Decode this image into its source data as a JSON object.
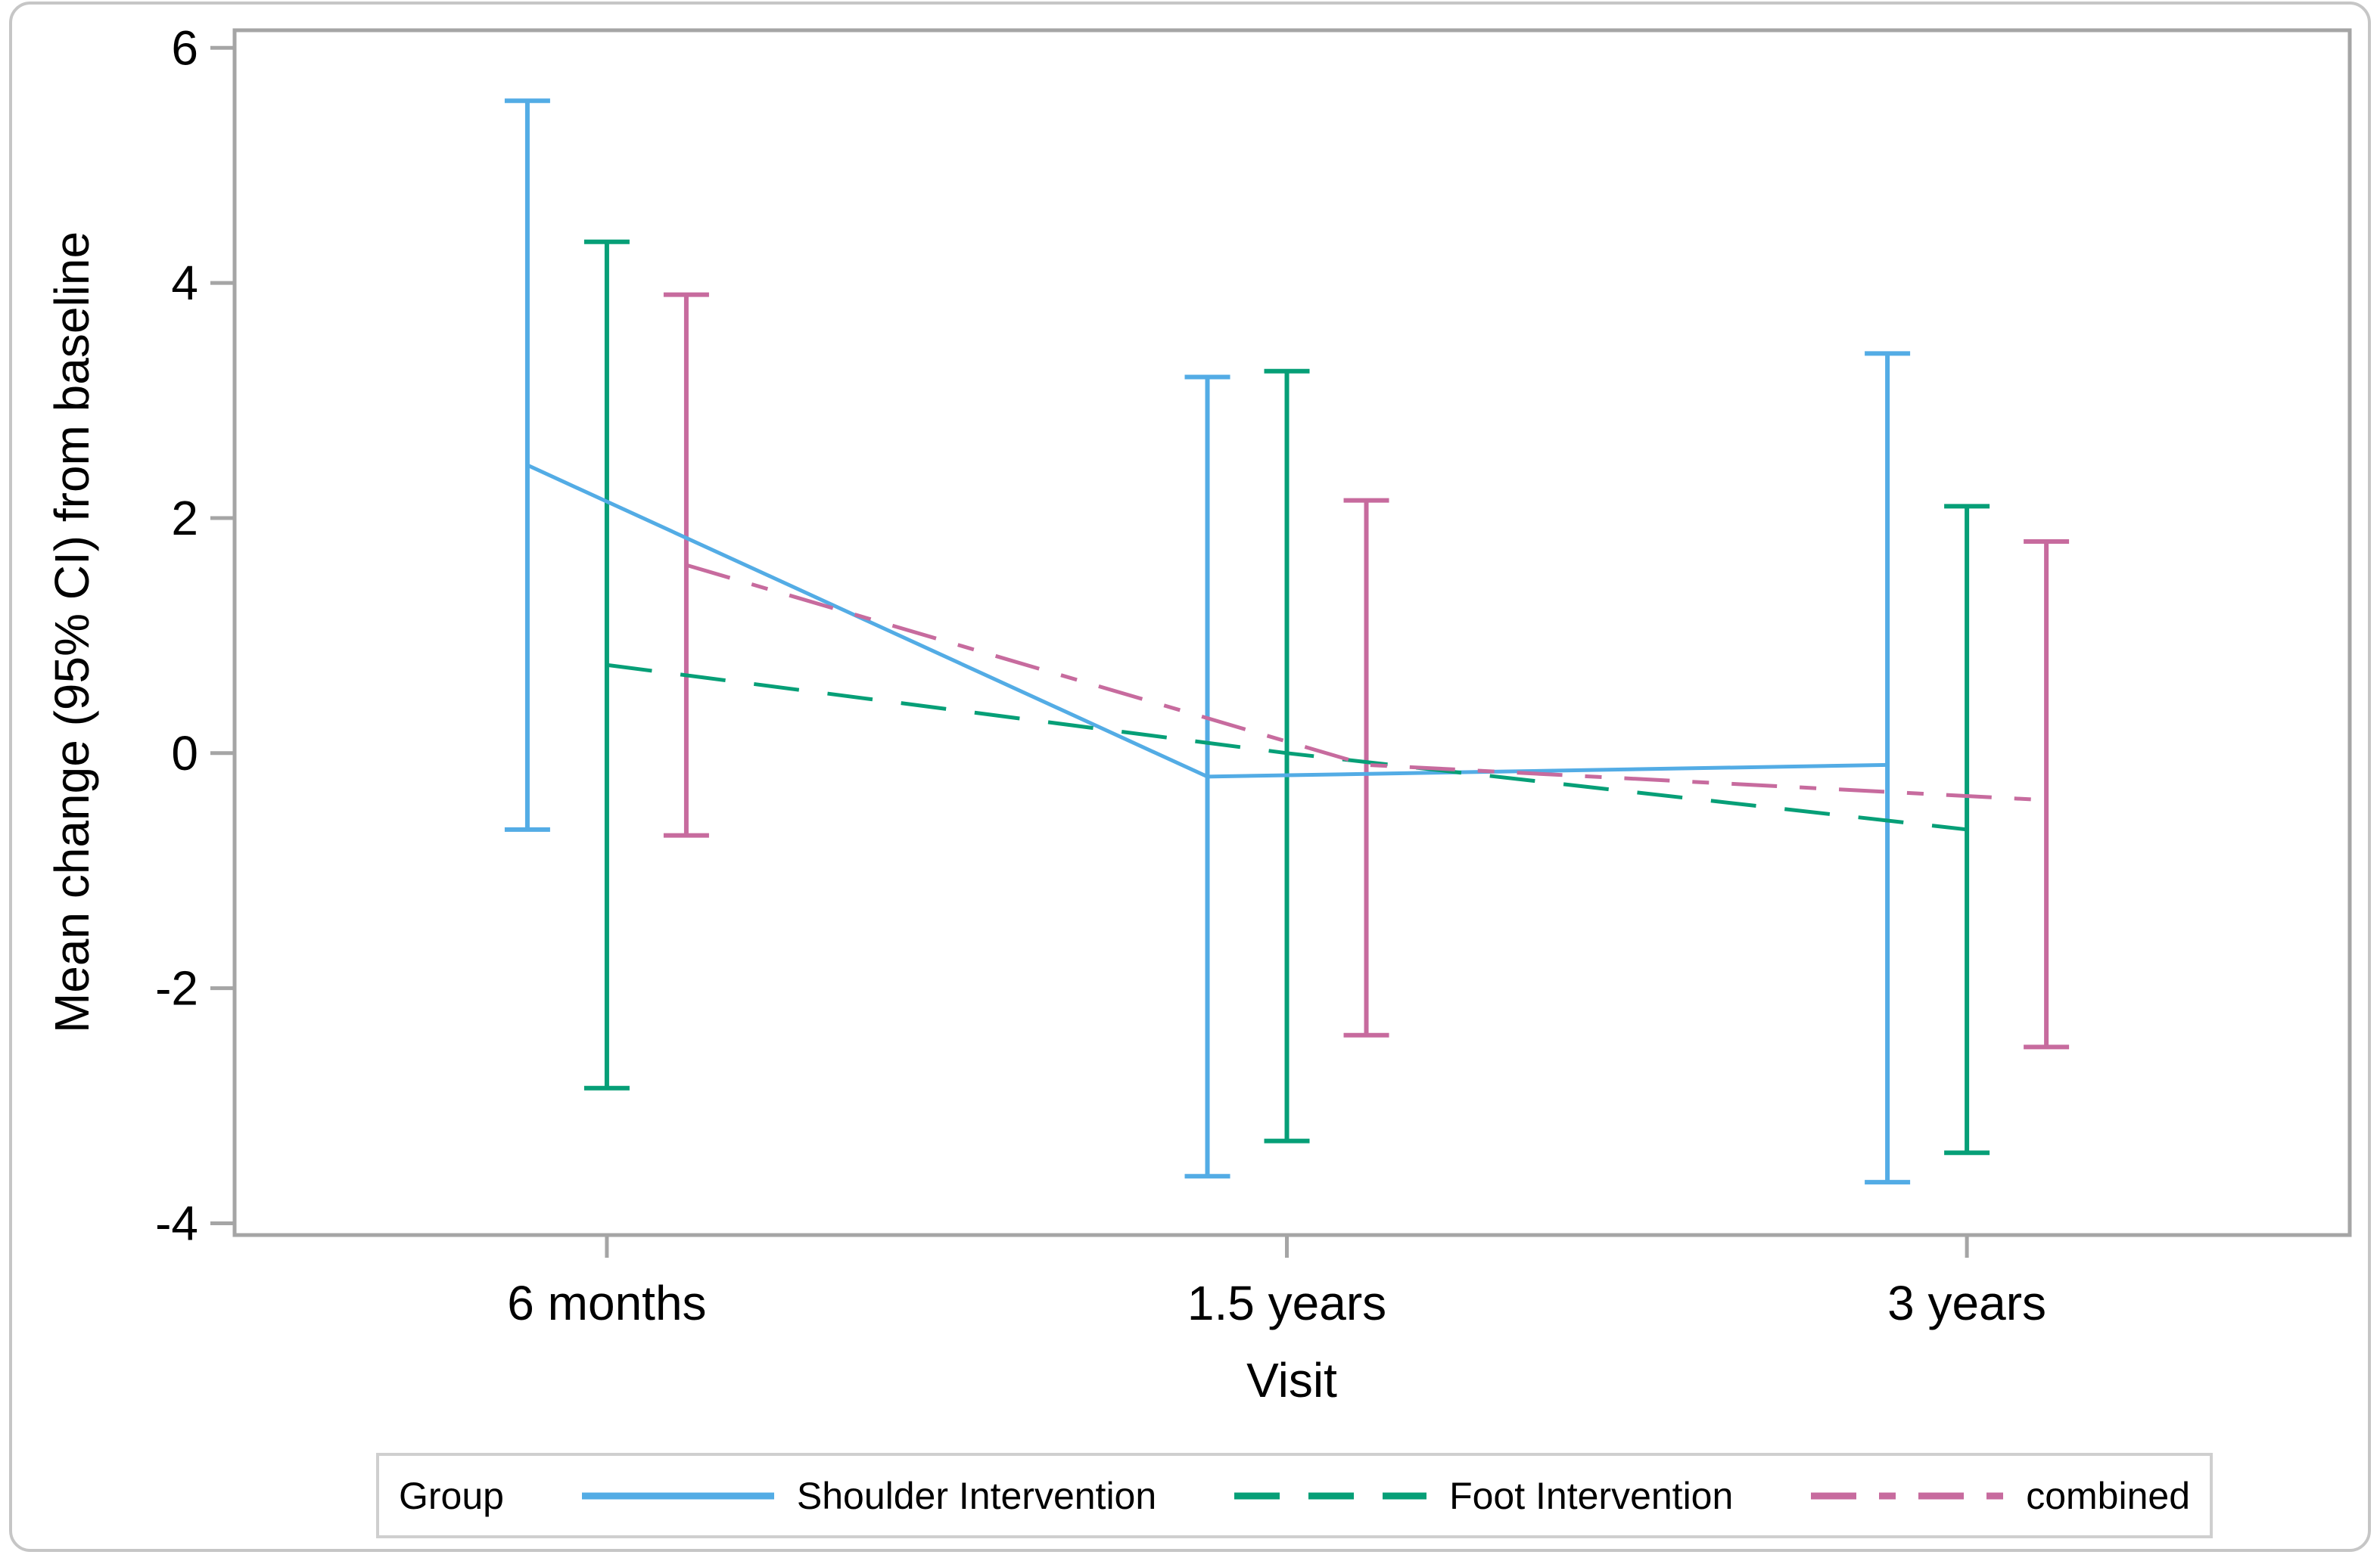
{
  "chart_data": {
    "type": "line",
    "title": "",
    "xlabel": "Visit",
    "ylabel": "Mean change (95% CI) from baseline",
    "categories": [
      "6 months",
      "1.5 years",
      "3 years"
    ],
    "y_ticks": [
      6,
      4,
      2,
      0,
      -2,
      -4
    ],
    "ylim": [
      -4.1,
      6.15
    ],
    "grid": false,
    "legend_position": "bottom",
    "legend_title": "Group",
    "axis_color": "#a5a5a5",
    "error_bars": "95% confidence interval, capped, clustered by group offset",
    "series": [
      {
        "name": "Shoulder Intervention",
        "color": "#53ace5",
        "line_style": "solid",
        "cluster_offset": -1,
        "means": [
          2.45,
          -0.2,
          -0.1
        ],
        "ci_upper": [
          5.55,
          3.2,
          3.4
        ],
        "ci_lower": [
          -0.65,
          -3.6,
          -3.65
        ]
      },
      {
        "name": "Foot Intervention",
        "color": "#069f77",
        "line_style": "dashed",
        "cluster_offset": 0,
        "means": [
          0.75,
          0.0,
          -0.65
        ],
        "ci_upper": [
          4.35,
          3.25,
          2.1
        ],
        "ci_lower": [
          -2.85,
          -3.3,
          -3.4
        ]
      },
      {
        "name": "combined",
        "color": "#c76b9e",
        "line_style": "dash-dot",
        "cluster_offset": 1,
        "means": [
          1.6,
          -0.1,
          -0.4
        ],
        "ci_upper": [
          3.9,
          2.15,
          1.8
        ],
        "ci_lower": [
          -0.7,
          -2.4,
          -2.5
        ]
      }
    ]
  }
}
